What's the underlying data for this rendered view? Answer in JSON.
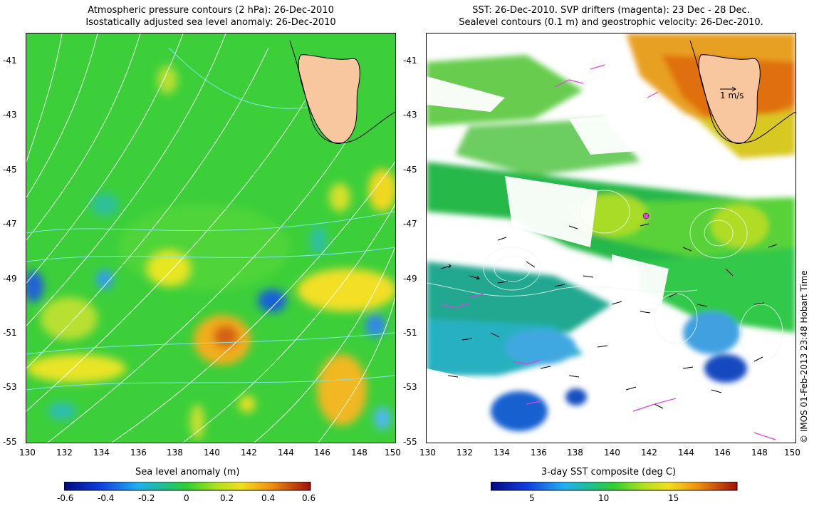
{
  "left_panel": {
    "title_line1": "Atmospheric pressure contours (2 hPa): 26-Dec-2010",
    "title_line2": "Isostatically adjusted sea level anomaly: 26-Dec-2010",
    "x_ticks": [
      "130",
      "132",
      "134",
      "136",
      "138",
      "140",
      "142",
      "144",
      "146",
      "148",
      "150"
    ],
    "y_ticks": [
      "-41",
      "-43",
      "-45",
      "-47",
      "-49",
      "-51",
      "-53",
      "-55"
    ],
    "colorbar": {
      "title": "Sea level anomaly (m)",
      "ticks": [
        "-0.6",
        "-0.4",
        "-0.2",
        "0",
        "0.2",
        "0.4",
        "0.6"
      ],
      "range": [
        -0.6,
        0.6
      ]
    }
  },
  "right_panel": {
    "title_line1": "SST: 26-Dec-2010. SVP drifters (magenta): 23 Dec - 28 Dec.",
    "title_line2": "Sealevel contours (0.1 m) and geostrophic velocity: 26-Dec-2010.",
    "x_ticks": [
      "130",
      "132",
      "134",
      "136",
      "138",
      "140",
      "142",
      "144",
      "146",
      "148",
      "150"
    ],
    "y_ticks": [
      "-41",
      "-43",
      "-45",
      "-47",
      "-49",
      "-51",
      "-53",
      "-55"
    ],
    "velocity_scale_label": "1 m/s",
    "colorbar": {
      "title": "3-day SST composite (deg C)",
      "ticks": [
        "5",
        "10",
        "15"
      ],
      "range": [
        2,
        20
      ]
    }
  },
  "credit": "© IMOS 01-Feb-2013 23:48 Hobart Time",
  "map_extent": {
    "lon": [
      130,
      150
    ],
    "lat": [
      -55,
      -40
    ]
  },
  "colors": {
    "land": "#f8c7a0",
    "ocean_green": "#2fcf3a",
    "contour_cyan": "#7fe8e8",
    "drifter_magenta": "#e040e0"
  }
}
